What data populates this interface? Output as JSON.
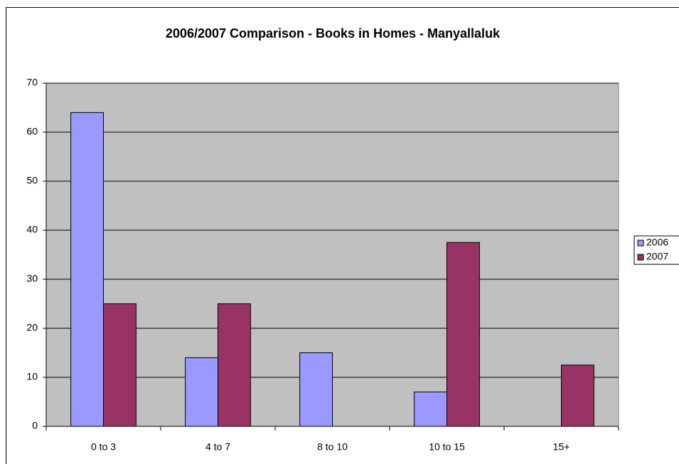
{
  "chart_data": {
    "type": "bar",
    "title": "2006/2007 Comparison - Books in Homes - Manyallaluk",
    "categories": [
      "0 to 3",
      "4 to 7",
      "8 to 10",
      "10 to 15",
      "15+"
    ],
    "series": [
      {
        "name": "2006",
        "color": "#9999ff",
        "values": [
          64,
          14,
          15,
          7,
          0
        ]
      },
      {
        "name": "2007",
        "color": "#993366",
        "values": [
          25,
          25,
          0,
          37.5,
          12.5
        ]
      }
    ],
    "ylim": [
      0,
      70
    ],
    "yticks": [
      0,
      10,
      20,
      30,
      40,
      50,
      60,
      70
    ],
    "grid": true,
    "legend": "right"
  }
}
